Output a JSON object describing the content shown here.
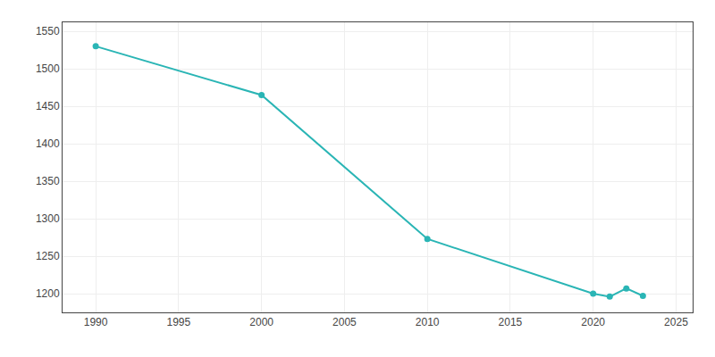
{
  "chart_data": {
    "type": "line",
    "x": [
      1990,
      2000,
      2010,
      2020,
      2021,
      2022,
      2023
    ],
    "values": [
      1530,
      1465,
      1273,
      1200,
      1196,
      1207,
      1197
    ],
    "color": "#2ab5b5",
    "marker": "circle",
    "xlim": [
      1988,
      2026
    ],
    "ylim": [
      1175,
      1562
    ],
    "xticks": [
      1990,
      1995,
      2000,
      2005,
      2010,
      2015,
      2020,
      2025
    ],
    "yticks": [
      1200,
      1250,
      1300,
      1350,
      1400,
      1450,
      1500,
      1550
    ],
    "grid": true
  }
}
